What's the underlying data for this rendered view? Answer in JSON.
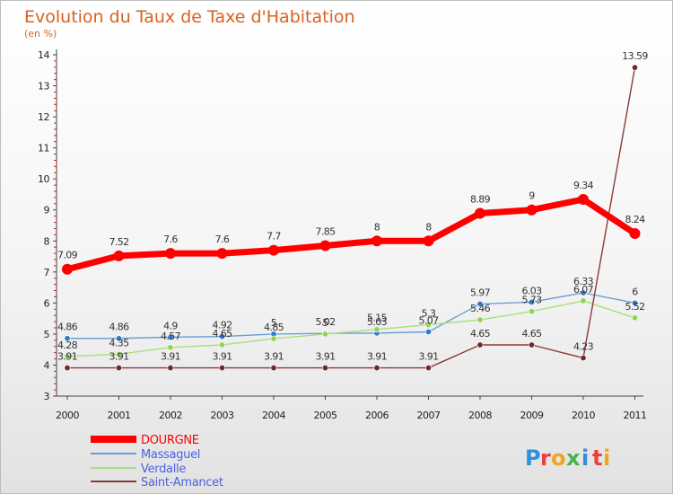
{
  "chart_data": {
    "type": "line",
    "title": "Evolution du Taux de Taxe d'Habitation",
    "subtitle": "(en %)",
    "xlabel": "",
    "ylabel": "",
    "categories": [
      "2000",
      "2001",
      "2002",
      "2003",
      "2004",
      "2005",
      "2006",
      "2007",
      "2008",
      "2009",
      "2010",
      "2011"
    ],
    "ylim": [
      3,
      14
    ],
    "yticks": [
      "3",
      "4",
      "5",
      "6",
      "7",
      "8",
      "9",
      "10",
      "11",
      "12",
      "13",
      "14"
    ],
    "grid": false,
    "legend_position": "bottom-left",
    "series": [
      {
        "name": "DOURGNE",
        "color": "#ff0000",
        "emphasis": true,
        "values": [
          7.09,
          7.52,
          7.6,
          7.6,
          7.7,
          7.85,
          8,
          8,
          8.89,
          9,
          9.34,
          8.24
        ],
        "labels": [
          "7.09",
          "7.52",
          "7.6",
          "7.6",
          "7.7",
          "7.85",
          "8",
          "8",
          "8.89",
          "9",
          "9.34",
          "8.24"
        ]
      },
      {
        "name": "Massaguel",
        "color": "#6b9fd4",
        "marker": "#2f7ad1",
        "values": [
          4.86,
          4.86,
          4.9,
          4.92,
          5,
          5.02,
          5.03,
          5.07,
          5.97,
          6.03,
          6.33,
          6
        ],
        "labels": [
          "4.86",
          "4.86",
          "4.9",
          "4.92",
          "5",
          "5.02",
          "5.03",
          "5.07",
          "5.97",
          "6.03",
          "6.33",
          "6"
        ]
      },
      {
        "name": "Verdalle",
        "color": "#a8e07a",
        "marker": "#8fd454",
        "values": [
          4.28,
          4.35,
          4.57,
          4.65,
          4.85,
          5,
          5.15,
          5.3,
          5.46,
          5.73,
          6.07,
          5.52
        ],
        "labels": [
          "4.28",
          "4.35",
          "4.57",
          "4.65",
          "4.85",
          "5",
          "5.15",
          "5.3",
          "5.46",
          "5.73",
          "6.07",
          "5.52"
        ]
      },
      {
        "name": "Saint-Amancet",
        "color": "#8b3a3a",
        "marker": "#6e2a2a",
        "values": [
          3.91,
          3.91,
          3.91,
          3.91,
          3.91,
          3.91,
          3.91,
          3.91,
          4.65,
          4.65,
          4.23,
          13.59
        ],
        "labels": [
          "3.91",
          "3.91",
          "3.91",
          "3.91",
          "3.91",
          "3.91",
          "3.91",
          "3.91",
          "4.65",
          "4.65",
          "4.23",
          "13.59"
        ]
      }
    ]
  },
  "brand": {
    "letters": [
      "P",
      "r",
      "o",
      "x",
      "i",
      "t",
      "i"
    ],
    "colors": [
      "#2f8fd8",
      "#e8423a",
      "#f2a51a",
      "#43b649",
      "#2f8fd8",
      "#e8423a",
      "#f2a51a"
    ]
  }
}
